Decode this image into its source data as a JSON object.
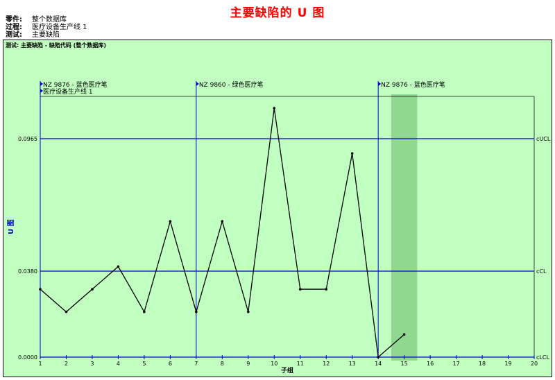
{
  "header": {
    "title": "主要缺陷的 U 图",
    "info": [
      {
        "key": "零件:",
        "value": "整个数据库"
      },
      {
        "key": "过程:",
        "value": "医疗设备生产线 1"
      },
      {
        "key": "测试:",
        "value": "主要缺陷"
      }
    ]
  },
  "panel": {
    "test_title": "测试: 主要缺陷 - 缺陷代码 (整个数据库)"
  },
  "chart_data": {
    "type": "line",
    "title": "主要缺陷的 U 图",
    "xlabel": "子组",
    "ylabel": "U 图",
    "xlim": [
      1,
      20
    ],
    "ylim": [
      0,
      0.1152
    ],
    "x_ticks": [
      1,
      2,
      3,
      4,
      5,
      6,
      7,
      8,
      9,
      10,
      11,
      12,
      13,
      14,
      15,
      16,
      17,
      18,
      19,
      20
    ],
    "y_ticks": [
      "0.0000",
      "0.0380",
      "0.0965"
    ],
    "series": [
      {
        "x": [
          1,
          2,
          3,
          4,
          5,
          6,
          7,
          8,
          9,
          10,
          11,
          12,
          13,
          14,
          15
        ],
        "values": [
          0.03,
          0.02,
          0.03,
          0.04,
          0.02,
          0.06,
          0.02,
          0.06,
          0.02,
          0.11,
          0.03,
          0.03,
          0.09,
          0.0,
          0.01
        ],
        "color": "#000000"
      }
    ],
    "control_lines": [
      {
        "label": "cUCL",
        "value": 0.0965
      },
      {
        "label": "cCL",
        "value": 0.038
      },
      {
        "label": "cLCL",
        "value": 0.0
      }
    ],
    "phase_markers": [
      {
        "x": 1,
        "labels": [
          "NZ 9876 - 蓝色医疗笔",
          "医疗设备生产线 1"
        ]
      },
      {
        "x": 7,
        "labels": [
          "NZ 9860 - 绿色医疗笔"
        ]
      },
      {
        "x": 14,
        "labels": [
          "NZ 9876 - 蓝色医疗笔"
        ]
      }
    ],
    "highlight_x": 15,
    "colors": {
      "background": "#c0ffc0",
      "control_line": "#0000cc",
      "tick_label": "#0000cc",
      "highlight": "#90d890",
      "title": "#ff0000"
    }
  }
}
